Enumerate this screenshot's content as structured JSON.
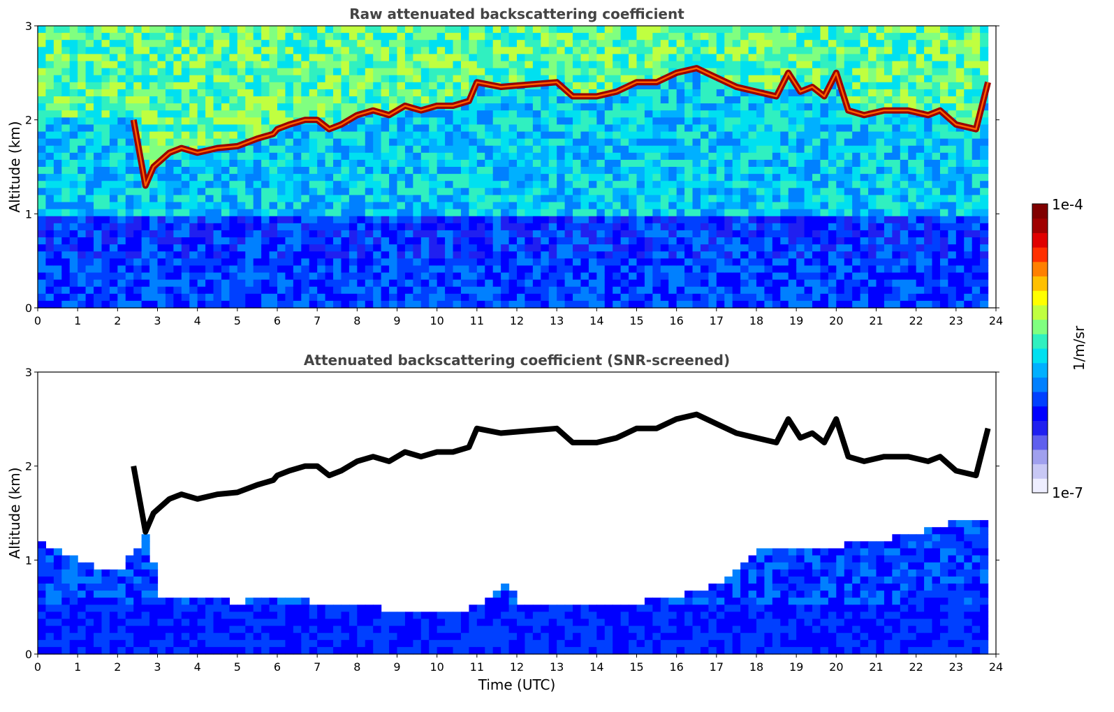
{
  "chart_data": [
    {
      "type": "heatmap",
      "title": "Raw attenuated backscattering coefficient",
      "xlabel": "",
      "ylabel": "Altitude (km)",
      "xlim": [
        0,
        24
      ],
      "ylim": [
        0,
        3
      ],
      "xticks": [
        0,
        1,
        2,
        3,
        4,
        5,
        6,
        7,
        8,
        9,
        10,
        11,
        12,
        13,
        14,
        15,
        16,
        17,
        18,
        19,
        20,
        21,
        22,
        23,
        24
      ],
      "yticks": [
        0,
        1,
        2,
        3
      ],
      "color_scale": {
        "min": "1e-7",
        "max": "1e-4",
        "unit": "1/m/sr",
        "log": true
      },
      "cloud_layer": {
        "description_series": "approximate altitude of the strongest backscatter layer (km) vs time (UTC)",
        "x": [
          2.4,
          2.7,
          2.9,
          3.3,
          3.6,
          4.0,
          4.5,
          5.0,
          5.5,
          5.9,
          6.0,
          6.3,
          6.7,
          7.0,
          7.3,
          7.6,
          8.0,
          8.4,
          8.8,
          9.2,
          9.6,
          10.0,
          10.4,
          10.8,
          11.0,
          11.6,
          13.0,
          13.4,
          14.0,
          14.5,
          15.0,
          15.5,
          16.0,
          16.5,
          17.0,
          17.5,
          18.0,
          18.5,
          18.8,
          19.1,
          19.4,
          19.7,
          20.0,
          20.3,
          20.7,
          21.2,
          21.8,
          22.3,
          22.6,
          23.0,
          23.5,
          23.8
        ],
        "y": [
          2.0,
          1.3,
          1.5,
          1.65,
          1.7,
          1.65,
          1.7,
          1.72,
          1.8,
          1.85,
          1.9,
          1.95,
          2.0,
          2.0,
          1.9,
          1.95,
          2.05,
          2.1,
          2.05,
          2.15,
          2.1,
          2.15,
          2.15,
          2.2,
          2.4,
          2.35,
          2.4,
          2.25,
          2.25,
          2.3,
          2.4,
          2.4,
          2.5,
          2.55,
          2.45,
          2.35,
          2.3,
          2.25,
          2.5,
          2.3,
          2.35,
          2.25,
          2.5,
          2.1,
          2.05,
          2.1,
          2.1,
          2.05,
          2.1,
          1.95,
          1.9,
          2.4
        ]
      }
    },
    {
      "type": "heatmap",
      "title": "Attenuated backscattering coefficient (SNR-screened)",
      "xlabel": "Time (UTC)",
      "ylabel": "Altitude (km)",
      "xlim": [
        0,
        24
      ],
      "ylim": [
        0,
        3
      ],
      "xticks": [
        0,
        1,
        2,
        3,
        4,
        5,
        6,
        7,
        8,
        9,
        10,
        11,
        12,
        13,
        14,
        15,
        16,
        17,
        18,
        19,
        20,
        21,
        22,
        23,
        24
      ],
      "yticks": [
        0,
        1,
        2,
        3
      ],
      "color_scale": {
        "min": "1e-7",
        "max": "1e-4",
        "unit": "1/m/sr",
        "log": true
      },
      "boundary_layer_top": {
        "x": [
          0,
          1,
          2,
          2.8,
          3,
          4,
          5,
          6,
          7,
          8,
          9,
          10,
          11,
          11.8,
          12,
          13,
          14,
          15,
          16,
          17,
          18,
          19,
          20,
          21,
          22,
          23,
          23.8
        ],
        "y": [
          1.2,
          1.0,
          0.85,
          1.3,
          0.6,
          0.6,
          0.55,
          0.6,
          0.55,
          0.5,
          0.48,
          0.45,
          0.5,
          0.8,
          0.55,
          0.55,
          0.55,
          0.55,
          0.6,
          0.75,
          1.1,
          1.15,
          1.15,
          1.2,
          1.3,
          1.4,
          1.4
        ]
      }
    }
  ],
  "colorbar": {
    "max_label": "1e-4",
    "min_label": "1e-7",
    "unit_label": "1/m/sr",
    "colors": [
      "#eeeeff",
      "#c8c8f5",
      "#a0a0ee",
      "#6060ee",
      "#2020f0",
      "#0000ff",
      "#0040ff",
      "#0080ff",
      "#00b0ff",
      "#00e0f0",
      "#30f0c0",
      "#80ff80",
      "#c0ff40",
      "#ffff00",
      "#ffc000",
      "#ff8000",
      "#ff3000",
      "#e00000",
      "#a00000",
      "#800000"
    ]
  }
}
